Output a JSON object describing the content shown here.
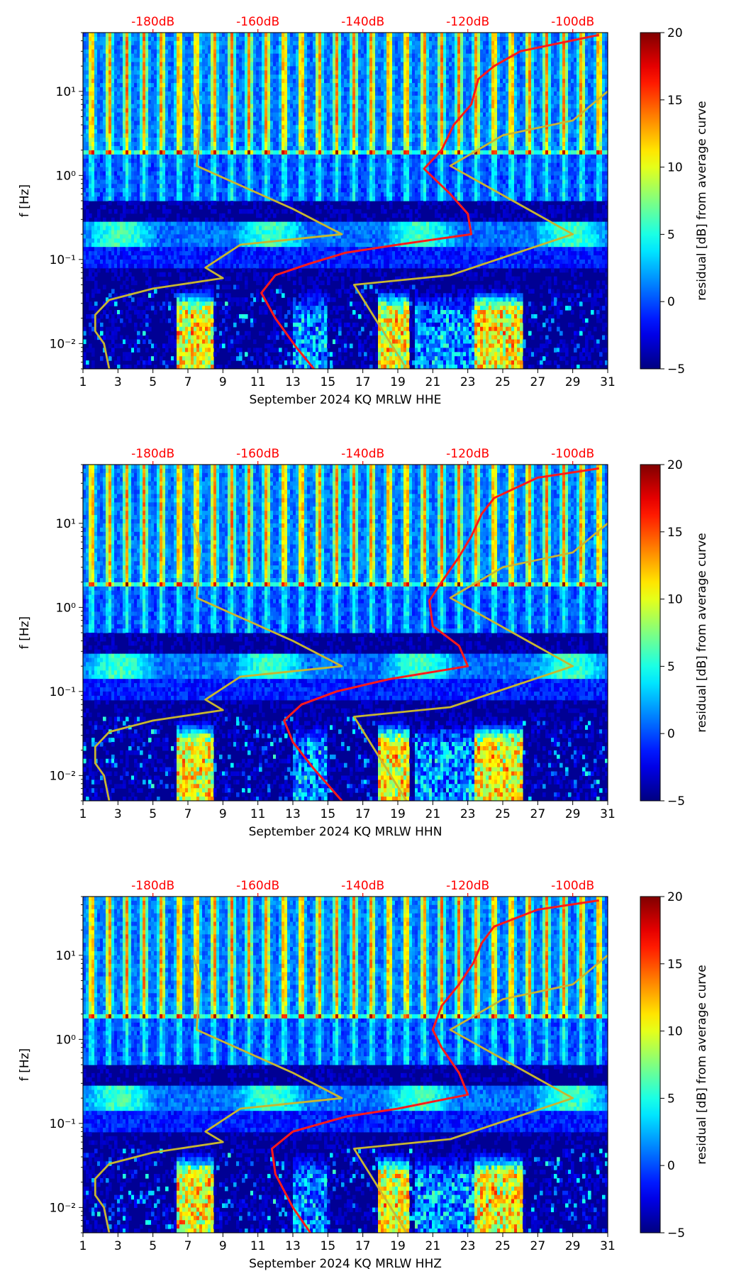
{
  "chart_data": [
    {
      "type": "heatmap",
      "subtype": "spectrogram-residual",
      "xlabel": "September 2024 KQ MRLW  HHE",
      "ylabel": "f [Hz]",
      "x_ticks": [
        "1",
        "3",
        "5",
        "7",
        "9",
        "11",
        "13",
        "15",
        "17",
        "19",
        "21",
        "23",
        "25",
        "27",
        "29",
        "31"
      ],
      "xlim": [
        1,
        31
      ],
      "y_scale": "log",
      "ylim": [
        0.005,
        50
      ],
      "y_ticks": [
        "10⁻²",
        "10⁻¹",
        "10⁰",
        "10¹"
      ],
      "top_ticks": [
        "-180dB",
        "-160dB",
        "-140dB",
        "-120dB",
        "-100dB"
      ],
      "top_tick_color": "#ff0000",
      "colorbar": {
        "label": "residual [dB] from average curve",
        "min": -5,
        "max": 20,
        "ticks": [
          "−5",
          "0",
          "5",
          "10",
          "15",
          "20"
        ],
        "colormap": "jet"
      },
      "series": [
        {
          "color": "#ff1a1a",
          "points": [
            [
              14.2,
              0.005
            ],
            [
              13.2,
              0.009
            ],
            [
              12,
              0.02
            ],
            [
              11.2,
              0.04
            ],
            [
              12,
              0.065
            ],
            [
              14,
              0.09
            ],
            [
              16,
              0.12
            ],
            [
              19,
              0.15
            ],
            [
              23.2,
              0.2
            ],
            [
              23,
              0.35
            ],
            [
              22,
              0.6
            ],
            [
              20.5,
              1.2
            ],
            [
              21.5,
              2
            ],
            [
              22.2,
              4
            ],
            [
              23.2,
              7
            ],
            [
              23.6,
              14
            ],
            [
              24.5,
              20
            ],
            [
              26,
              30
            ],
            [
              30.5,
              47
            ]
          ]
        },
        {
          "color": "#c8b630",
          "points": [
            [
              2.5,
              0.005
            ],
            [
              2.2,
              0.01
            ],
            [
              1.7,
              0.014
            ],
            [
              1.7,
              0.022
            ],
            [
              2.5,
              0.033
            ],
            [
              5,
              0.045
            ],
            [
              9,
              0.06
            ],
            [
              8,
              0.08
            ],
            [
              10,
              0.15
            ],
            [
              15.8,
              0.2
            ],
            [
              13,
              0.4
            ],
            [
              7.5,
              1.3
            ],
            [
              7.7,
              5
            ],
            [
              7.3,
              10
            ]
          ]
        },
        {
          "color": "#c8b630",
          "points": [
            [
              19.5,
              0.005
            ],
            [
              16.5,
              0.05
            ],
            [
              22,
              0.065
            ],
            [
              29,
              0.2
            ],
            [
              22,
              1.3
            ],
            [
              25,
              3
            ],
            [
              29,
              4.5
            ],
            [
              31,
              10
            ]
          ]
        }
      ]
    },
    {
      "type": "heatmap",
      "subtype": "spectrogram-residual",
      "xlabel": "September 2024 KQ MRLW  HHN",
      "ylabel": "f [Hz]",
      "x_ticks": [
        "1",
        "3",
        "5",
        "7",
        "9",
        "11",
        "13",
        "15",
        "17",
        "19",
        "21",
        "23",
        "25",
        "27",
        "29",
        "31"
      ],
      "xlim": [
        1,
        31
      ],
      "y_scale": "log",
      "ylim": [
        0.005,
        50
      ],
      "y_ticks": [
        "10⁻²",
        "10⁻¹",
        "10⁰",
        "10¹"
      ],
      "top_ticks": [
        "-180dB",
        "-160dB",
        "-140dB",
        "-120dB",
        "-100dB"
      ],
      "top_tick_color": "#ff0000",
      "colorbar": {
        "label": "residual [dB] from average curve",
        "min": -5,
        "max": 20,
        "ticks": [
          "−5",
          "0",
          "5",
          "10",
          "15",
          "20"
        ],
        "colormap": "jet"
      },
      "series": [
        {
          "color": "#ff1a1a",
          "points": [
            [
              15.8,
              0.005
            ],
            [
              14.2,
              0.012
            ],
            [
              13,
              0.025
            ],
            [
              12.5,
              0.045
            ],
            [
              13.5,
              0.07
            ],
            [
              15.5,
              0.1
            ],
            [
              18.5,
              0.14
            ],
            [
              23,
              0.2
            ],
            [
              22.5,
              0.35
            ],
            [
              21,
              0.6
            ],
            [
              20.8,
              1.2
            ],
            [
              21.5,
              2
            ],
            [
              22.5,
              4
            ],
            [
              23.2,
              7
            ],
            [
              23.8,
              13
            ],
            [
              24.5,
              20
            ],
            [
              27,
              35
            ],
            [
              30.5,
              45
            ]
          ]
        },
        {
          "color": "#c8b630",
          "points": [
            [
              2.5,
              0.005
            ],
            [
              2.2,
              0.01
            ],
            [
              1.7,
              0.014
            ],
            [
              1.7,
              0.022
            ],
            [
              2.5,
              0.033
            ],
            [
              5,
              0.045
            ],
            [
              9,
              0.06
            ],
            [
              8,
              0.08
            ],
            [
              10,
              0.15
            ],
            [
              15.8,
              0.2
            ],
            [
              13,
              0.4
            ],
            [
              7.5,
              1.3
            ],
            [
              7.7,
              5
            ],
            [
              7.3,
              10
            ]
          ]
        },
        {
          "color": "#c8b630",
          "points": [
            [
              19.5,
              0.005
            ],
            [
              16.5,
              0.05
            ],
            [
              22,
              0.065
            ],
            [
              29,
              0.2
            ],
            [
              22,
              1.3
            ],
            [
              25,
              3
            ],
            [
              29,
              4.5
            ],
            [
              31,
              10
            ]
          ]
        }
      ]
    },
    {
      "type": "heatmap",
      "subtype": "spectrogram-residual",
      "xlabel": "September 2024 KQ MRLW  HHZ",
      "ylabel": "f [Hz]",
      "x_ticks": [
        "1",
        "3",
        "5",
        "7",
        "9",
        "11",
        "13",
        "15",
        "17",
        "19",
        "21",
        "23",
        "25",
        "27",
        "29",
        "31"
      ],
      "xlim": [
        1,
        31
      ],
      "y_scale": "log",
      "ylim": [
        0.005,
        50
      ],
      "y_ticks": [
        "10⁻²",
        "10⁻¹",
        "10⁰",
        "10¹"
      ],
      "top_ticks": [
        "-180dB",
        "-160dB",
        "-140dB",
        "-120dB",
        "-100dB"
      ],
      "top_tick_color": "#ff0000",
      "colorbar": {
        "label": "residual [dB] from average curve",
        "min": -5,
        "max": 20,
        "ticks": [
          "−5",
          "0",
          "5",
          "10",
          "15",
          "20"
        ],
        "colormap": "jet"
      },
      "series": [
        {
          "color": "#ff1a1a",
          "points": [
            [
              14,
              0.005
            ],
            [
              13,
              0.01
            ],
            [
              12,
              0.025
            ],
            [
              11.8,
              0.05
            ],
            [
              13,
              0.08
            ],
            [
              16,
              0.12
            ],
            [
              19,
              0.15
            ],
            [
              23,
              0.22
            ],
            [
              22.5,
              0.4
            ],
            [
              21.5,
              0.8
            ],
            [
              21,
              1.3
            ],
            [
              21.5,
              2.5
            ],
            [
              22.5,
              4.5
            ],
            [
              23.3,
              8
            ],
            [
              23.8,
              14
            ],
            [
              24.5,
              22
            ],
            [
              27,
              35
            ],
            [
              30.5,
              45
            ]
          ]
        },
        {
          "color": "#c8b630",
          "points": [
            [
              2.5,
              0.005
            ],
            [
              2.2,
              0.01
            ],
            [
              1.7,
              0.014
            ],
            [
              1.7,
              0.022
            ],
            [
              2.5,
              0.033
            ],
            [
              5,
              0.045
            ],
            [
              9,
              0.06
            ],
            [
              8,
              0.08
            ],
            [
              10,
              0.15
            ],
            [
              15.8,
              0.2
            ],
            [
              13,
              0.4
            ],
            [
              7.5,
              1.3
            ],
            [
              7.7,
              5
            ],
            [
              7.3,
              10
            ]
          ]
        },
        {
          "color": "#c8b630",
          "points": [
            [
              19.5,
              0.005
            ],
            [
              16.5,
              0.05
            ],
            [
              22,
              0.065
            ],
            [
              29,
              0.2
            ],
            [
              22,
              1.3
            ],
            [
              25,
              3
            ],
            [
              29,
              4.5
            ],
            [
              31,
              10
            ]
          ]
        }
      ]
    }
  ]
}
